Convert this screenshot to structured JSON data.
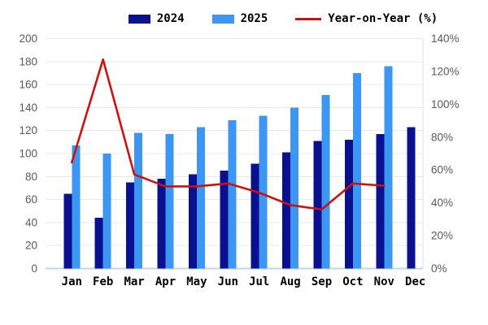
{
  "legend": {
    "items": [
      {
        "label": "2024",
        "swatch": "rect",
        "color": "#0A1190"
      },
      {
        "label": "2025",
        "swatch": "rect",
        "color": "#3E96F3"
      },
      {
        "label": "Year-on-Year (%)",
        "swatch": "line",
        "color": "#CC1111"
      }
    ]
  },
  "chart_data": {
    "type": "bar+line combo, dual axis",
    "categories": [
      "Jan",
      "Feb",
      "Mar",
      "Apr",
      "May",
      "Jun",
      "Jul",
      "Aug",
      "Sep",
      "Oct",
      "Nov",
      "Dec"
    ],
    "series": [
      {
        "name": "2024",
        "type": "bar",
        "axis": "left",
        "color": "#0A1190",
        "values": [
          65,
          44,
          75,
          78,
          82,
          85,
          91,
          101,
          111,
          112,
          117,
          123
        ]
      },
      {
        "name": "2025",
        "type": "bar",
        "axis": "left",
        "color": "#3E96F3",
        "values": [
          107,
          100,
          118,
          117,
          123,
          129,
          133,
          140,
          151,
          170,
          176,
          null
        ]
      },
      {
        "name": "Year-on-Year (%)",
        "type": "line",
        "axis": "right",
        "color": "#CC1111",
        "values": [
          64.6,
          127.3,
          57.3,
          50.0,
          50.0,
          51.8,
          46.2,
          38.6,
          36.0,
          51.8,
          50.4,
          null
        ]
      }
    ],
    "left_axis": {
      "min": 0,
      "max": 200,
      "step": 20,
      "ticks": [
        "0",
        "20",
        "40",
        "60",
        "80",
        "100",
        "120",
        "140",
        "160",
        "180",
        "200"
      ]
    },
    "right_axis": {
      "min": 0,
      "max": 140,
      "step": 20,
      "ticks": [
        "0%",
        "20%",
        "40%",
        "60%",
        "80%",
        "100%",
        "120%",
        "140%"
      ]
    },
    "grid": "horizontal only, plus right border vertical line and light-blue baseline",
    "legend_position": "top center",
    "colors": {
      "grid_line": "#E8E8E8",
      "baseline": "#BDD7EE",
      "right_border": "#DCE3EA",
      "axis_tick_text": "#595959",
      "category_text": "#000000"
    }
  }
}
